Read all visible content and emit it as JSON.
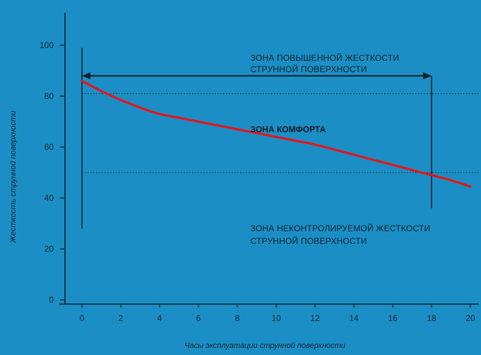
{
  "chart_data": {
    "type": "line",
    "title": "",
    "xlabel": "Часы эксплуатации струнной поверхности",
    "ylabel": "Жесткость струнной поверхности",
    "xlim": [
      0,
      20
    ],
    "ylim": [
      0,
      110
    ],
    "x_ticks": [
      "0",
      "2",
      "4",
      "6",
      "8",
      "10",
      "12",
      "14",
      "16",
      "18",
      "20"
    ],
    "y_ticks": [
      "0",
      "20",
      "40",
      "60",
      "80",
      "100"
    ],
    "grid": false,
    "legend": "none",
    "series": [
      {
        "name": "",
        "color": "#e8141a",
        "x": [
          0,
          1,
          2,
          3,
          4,
          5,
          6,
          7,
          8,
          9,
          10,
          11,
          12,
          13,
          14,
          15,
          16,
          17,
          18,
          19,
          20
        ],
        "y": [
          86,
          82,
          78.5,
          75.5,
          73,
          71.5,
          70,
          68.5,
          67,
          65.5,
          64,
          62.5,
          61,
          59,
          57,
          55,
          53,
          51,
          49,
          47,
          44.5
        ]
      }
    ],
    "reference_lines": {
      "horizontal": [
        {
          "y": 81,
          "style": "dotted"
        },
        {
          "y": 50,
          "style": "dotted"
        }
      ],
      "vertical": [
        {
          "x": 0,
          "from": 28,
          "to": 99
        },
        {
          "x": 18,
          "from": 36,
          "to": 88
        }
      ]
    },
    "arrow": {
      "x_from": 0,
      "x_to": 18,
      "y": 88
    },
    "annotations": [
      {
        "text": "ЗОНА ПОВЫШЕННОЙ ЖЕСТКОСТИ",
        "x": 9,
        "y": 95,
        "bold": false
      },
      {
        "text": "СТРУННОЙ ПОВЕРХНОСТИ",
        "x": 9,
        "y": 90.5,
        "bold": false
      },
      {
        "text": "ЗОНА КОМФОРТА",
        "x": 9,
        "y": 67,
        "bold": true
      },
      {
        "text": "ЗОНА НЕКОНТРОЛИРУЕМОЙ ЖЕСТКОСТИ",
        "x": 9,
        "y": 28,
        "bold": false
      },
      {
        "text": "СТРУННОЙ ПОВЕРХНОСТИ",
        "x": 9,
        "y": 23,
        "bold": false
      }
    ],
    "colors": {
      "background": "#1b8fc5",
      "axis": "#15202a",
      "line": "#e8141a"
    }
  }
}
